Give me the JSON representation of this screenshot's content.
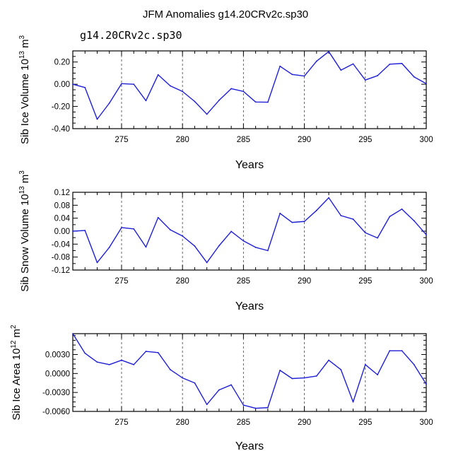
{
  "title": "JFM Anomalies g14.20CRv2c.sp30",
  "run_label": "g14.20CRv2c.sp30",
  "colors": {
    "line": "#1f1fd6",
    "run_label": "#3a3ad8",
    "axis": "#000000",
    "grid": "#555555"
  },
  "chart_data": [
    {
      "type": "line",
      "ylabel": "Sib Ice Volume 10",
      "ylabel_exp": "13",
      "ylabel_unit": "m",
      "ylabel_unit_exp": "3",
      "xlabel": "Years",
      "xlim": [
        271,
        300
      ],
      "ylim": [
        -0.4,
        0.3
      ],
      "yticks": [
        -0.4,
        -0.2,
        0.0,
        0.2
      ],
      "ytick_labels": [
        "-0.40",
        "-0.20",
        "0.00",
        "0.20"
      ],
      "yminor_step": 0.05,
      "xticks": [
        275,
        280,
        285,
        290,
        295,
        300
      ],
      "xtick_labels": [
        "275",
        "280",
        "285",
        "290",
        "295",
        "300"
      ],
      "grid_x": [
        275,
        280,
        285,
        290,
        295
      ],
      "series": [
        {
          "name": "g14.20CRv2c.sp30",
          "x": [
            271,
            272,
            273,
            274,
            275,
            276,
            277,
            278,
            279,
            280,
            281,
            282,
            283,
            284,
            285,
            286,
            287,
            288,
            289,
            290,
            291,
            292,
            293,
            294,
            295,
            296,
            297,
            298,
            299,
            300
          ],
          "values": [
            0.0,
            -0.03,
            -0.315,
            -0.17,
            0.005,
            0.0,
            -0.148,
            0.085,
            -0.015,
            -0.065,
            -0.155,
            -0.27,
            -0.145,
            -0.04,
            -0.065,
            -0.16,
            -0.162,
            0.162,
            0.088,
            0.074,
            0.207,
            0.294,
            0.127,
            0.183,
            0.038,
            0.077,
            0.18,
            0.187,
            0.066,
            0.005
          ]
        }
      ]
    },
    {
      "type": "line",
      "ylabel": "Sib Snow Volume 10",
      "ylabel_exp": "13",
      "ylabel_unit": "m",
      "ylabel_unit_exp": "3",
      "xlabel": "Years",
      "xlim": [
        271,
        300
      ],
      "ylim": [
        -0.12,
        0.12
      ],
      "yticks": [
        -0.12,
        -0.08,
        -0.04,
        0.0,
        0.04,
        0.08,
        0.12
      ],
      "ytick_labels": [
        "-0.12",
        "-0.08",
        "-0.04",
        "0.00",
        "0.04",
        "0.08",
        "0.12"
      ],
      "yminor_step": 0.02,
      "xticks": [
        275,
        280,
        285,
        290,
        295,
        300
      ],
      "xtick_labels": [
        "275",
        "280",
        "285",
        "290",
        "295",
        "300"
      ],
      "grid_x": [
        275,
        280,
        285,
        290,
        295
      ],
      "series": [
        {
          "name": "g14.20CRv2c.sp30",
          "x": [
            271,
            272,
            273,
            274,
            275,
            276,
            277,
            278,
            279,
            280,
            281,
            282,
            283,
            284,
            285,
            286,
            287,
            288,
            289,
            290,
            291,
            292,
            293,
            294,
            295,
            296,
            297,
            298,
            299,
            300
          ],
          "values": [
            0.0,
            0.002,
            -0.097,
            -0.05,
            0.011,
            0.007,
            -0.049,
            0.042,
            0.004,
            -0.015,
            -0.046,
            -0.097,
            -0.045,
            -0.001,
            -0.03,
            -0.05,
            -0.06,
            0.055,
            0.027,
            0.03,
            0.064,
            0.103,
            0.048,
            0.037,
            -0.005,
            -0.021,
            0.045,
            0.068,
            0.032,
            -0.011
          ]
        }
      ]
    },
    {
      "type": "line",
      "ylabel": "Sib Ice Area 10",
      "ylabel_exp": "12",
      "ylabel_unit": "m",
      "ylabel_unit_exp": "2",
      "xlabel": "Years",
      "xlim": [
        271,
        300
      ],
      "ylim": [
        -0.006,
        0.0063
      ],
      "yticks": [
        -0.006,
        -0.003,
        0.0,
        0.003
      ],
      "ytick_labels": [
        "-0.0060",
        "-0.0030",
        "0.0000",
        "0.0030"
      ],
      "yminor_step": 0.00075,
      "xticks": [
        275,
        280,
        285,
        290,
        295,
        300
      ],
      "xtick_labels": [
        "275",
        "280",
        "285",
        "290",
        "295",
        "300"
      ],
      "grid_x": [
        275,
        280,
        285,
        290,
        295
      ],
      "series": [
        {
          "name": "g14.20CRv2c.sp30",
          "x": [
            271,
            272,
            273,
            274,
            275,
            276,
            277,
            278,
            279,
            280,
            281,
            282,
            283,
            284,
            285,
            286,
            287,
            288,
            289,
            290,
            291,
            292,
            293,
            294,
            295,
            296,
            297,
            298,
            299,
            300
          ],
          "values": [
            0.0063,
            0.0032,
            0.0018,
            0.0014,
            0.0021,
            0.0014,
            0.0035,
            0.0033,
            0.0006,
            -0.0007,
            -0.0015,
            -0.0049,
            -0.0026,
            -0.0018,
            -0.005,
            -0.0055,
            -0.0054,
            0.0005,
            -0.0008,
            -0.0007,
            -0.0004,
            0.0021,
            0.0006,
            -0.0045,
            0.0014,
            -0.0002,
            0.0036,
            0.0036,
            0.0014,
            -0.0017
          ]
        }
      ]
    }
  ]
}
